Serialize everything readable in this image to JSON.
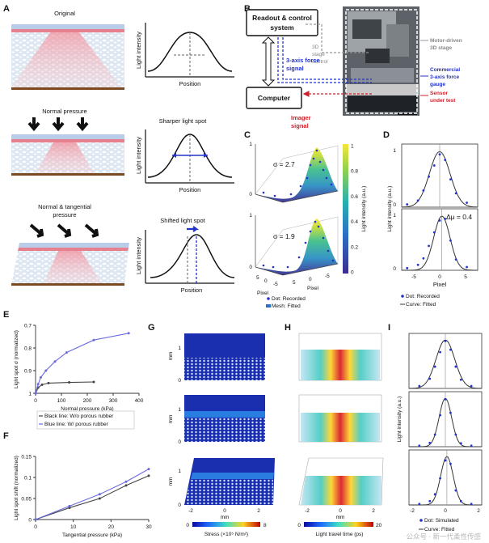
{
  "panels": {
    "A": {
      "label": "A",
      "rows": [
        {
          "title": "Original",
          "curve_title": "",
          "ylabel": "Light intensity",
          "xlabel": "Position"
        },
        {
          "title": "Normal pressure",
          "curve_title": "Sharper light spot",
          "ylabel": "Light intensity",
          "xlabel": "Position"
        },
        {
          "title": "Normal & tangential\npressure",
          "title_l1": "Normal & tangential",
          "title_l2": "pressure",
          "curve_title": "Shifted light spot",
          "ylabel": "Light intensity",
          "xlabel": "Position"
        }
      ]
    },
    "B": {
      "label": "B",
      "readout": "Readout & control system",
      "readout_l1": "Readout & control",
      "readout_l2": "system",
      "computer": "Computer",
      "stage_ctrl_l1": "3D",
      "stage_ctrl_l2": "stage",
      "stage_ctrl_l3": "control",
      "force_l1": "3-axis force",
      "force_l2": "signal",
      "imager_l1": "Imager",
      "imager_l2": "signal",
      "motor_l1": "Motor-driven",
      "motor_l2": "3D stage",
      "gauge_l1": "Commercial",
      "gauge_l2": "3-axis force",
      "gauge_l3": "gauge",
      "sensor_l1": "Sensor",
      "sensor_l2": "under test"
    },
    "C": {
      "label": "C",
      "sigma1": "σ = 2.7",
      "sigma2": "σ = 1.9",
      "colorbar_label": "Light intensity (a.u.)",
      "colorbar_ticks": [
        "1",
        "0.8",
        "0.6",
        "0.4",
        "0.2",
        "0"
      ],
      "xlabel_left": "Pixel",
      "xlabel_right": "Pixel",
      "ticks_left": [
        "5",
        "0",
        "-5"
      ],
      "ticks_right": [
        "5",
        "0",
        "-5"
      ],
      "legend": [
        "Dot: Recorded",
        "Mesh: Fitted"
      ]
    },
    "D": {
      "label": "D",
      "ylabel": "Light intensity (a.u.)",
      "xlabel": "Pixel",
      "annotation": "Δμ = 0.4",
      "yticks": [
        "1",
        "0"
      ],
      "xticks": [
        "-5",
        "0",
        "5"
      ],
      "legend": [
        "Dot: Recorded",
        "Curve: Fitted"
      ]
    },
    "E": {
      "label": "E"
    },
    "F": {
      "label": "F"
    },
    "G": {
      "label": "G",
      "ylabel": "mm",
      "xlabel": "mm",
      "yticks": [
        "1",
        "0"
      ],
      "xticks": [
        "-2",
        "0",
        "2"
      ],
      "colorbar_label": "Stress (×10⁵ N/m²)",
      "colorbar_min": "0",
      "colorbar_max": "8"
    },
    "H": {
      "label": "H",
      "xlabel": "mm",
      "xticks": [
        "-2",
        "0",
        "2"
      ],
      "colorbar_label": "Light travel time (ps)",
      "colorbar_min": "0",
      "colorbar_max": "20"
    },
    "I": {
      "label": "I",
      "ylabel": "Light intensity (a.u.)",
      "xticks": [
        "-2",
        "0",
        "2"
      ],
      "legend": [
        "Dot: Simulated",
        "Curve: Fitted"
      ]
    }
  },
  "watermark": "公众号 · 新一代柔性传感",
  "chart_data": [
    {
      "type": "line",
      "panel": "E",
      "title": "",
      "xlabel": "Normal pressure (kPa)",
      "ylabel": "Light spot σ (normalized)",
      "xlim": [
        0,
        400
      ],
      "ylim": [
        1,
        0.7
      ],
      "xticks": [
        "0",
        "100",
        "200",
        "300",
        "400"
      ],
      "yticks": [
        "0.7",
        "0.8",
        "0.9",
        "1"
      ],
      "grid": false,
      "legend_position": "bottom-left",
      "legend": [
        "Black line: W/o porous rubber",
        "Blue line: W/ porous rubber"
      ],
      "series": [
        {
          "name": "Black line: W/o porous rubber",
          "color": "#444444",
          "x": [
            0,
            10,
            25,
            50,
            130,
            225
          ],
          "y": [
            1.0,
            0.975,
            0.962,
            0.955,
            0.952,
            0.95
          ]
        },
        {
          "name": "Blue line: W/ porous rubber",
          "color": "#6a6ae0",
          "x": [
            0,
            10,
            20,
            40,
            75,
            120,
            225,
            360
          ],
          "y": [
            1.0,
            0.96,
            0.93,
            0.9,
            0.86,
            0.82,
            0.765,
            0.735
          ]
        }
      ]
    },
    {
      "type": "line",
      "panel": "F",
      "title": "",
      "xlabel": "Tangential pressure (kPa)",
      "ylabel": "Light spot shift (normalized)",
      "xlim": [
        0,
        30
      ],
      "ylim": [
        0,
        0.15
      ],
      "xticks": [
        "0",
        "10",
        "20",
        "30"
      ],
      "yticks": [
        "0",
        "0.05",
        "0.1",
        "0.15"
      ],
      "grid": false,
      "series": [
        {
          "name": "",
          "color": "#444444",
          "x": [
            0,
            9,
            17,
            24,
            30
          ],
          "y": [
            0,
            0.028,
            0.05,
            0.081,
            0.104
          ]
        },
        {
          "name": "",
          "color": "#6a6ae0",
          "x": [
            0,
            9,
            17,
            24,
            30
          ],
          "y": [
            0,
            0.032,
            0.06,
            0.09,
            0.12
          ]
        }
      ]
    }
  ],
  "colors": {
    "blue": "#2233cc",
    "red": "#d0202a",
    "gray": "#8a8a8a",
    "accent_blue": "#6a6ae0"
  }
}
